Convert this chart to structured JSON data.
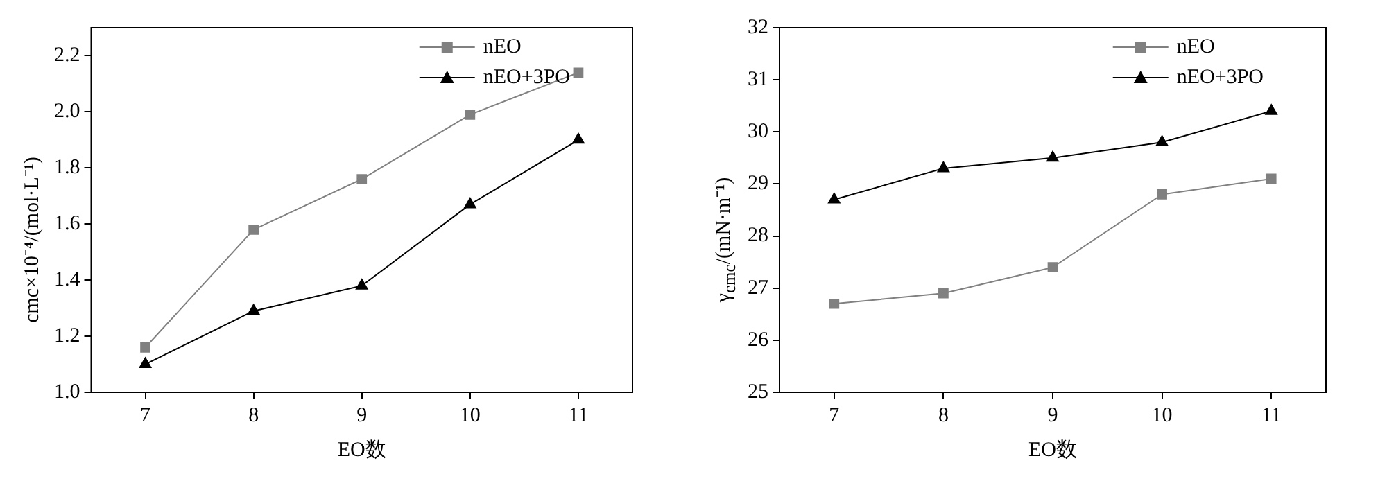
{
  "chart_data": [
    {
      "type": "line",
      "categories": [
        "7",
        "8",
        "9",
        "10",
        "11"
      ],
      "xlabel": "EO数",
      "ylabel": "cmc×10⁻⁴/(mol·L⁻¹)",
      "ylim": [
        1.0,
        2.3
      ],
      "yticks": [
        {
          "value": 1.0,
          "label": "1.0"
        },
        {
          "value": 1.2,
          "label": "1.2"
        },
        1.4,
        1.6,
        {
          "value": 1.8,
          "label": "1.8"
        },
        {
          "value": 2.0,
          "label": "2.0"
        },
        2.2
      ],
      "grid": false,
      "legend": "top right",
      "line_style": "solid",
      "series": [
        {
          "name": "nEO",
          "color": "#808080",
          "marker": "square",
          "values": [
            1.16,
            1.58,
            1.76,
            1.99,
            2.14
          ]
        },
        {
          "name": "nEO+3PO",
          "color": "#000000",
          "marker": "triangle",
          "values": [
            1.1,
            1.29,
            1.38,
            1.67,
            1.9
          ]
        }
      ]
    },
    {
      "type": "line",
      "categories": [
        "7",
        "8",
        "9",
        "10",
        "11"
      ],
      "xlabel": "EO数",
      "ylabel": "γ$_{cmc}$/(mN·m⁻¹)",
      "ylim": [
        25,
        32
      ],
      "yticks": [
        25,
        26,
        27,
        28,
        29,
        30,
        31,
        32
      ],
      "grid": false,
      "legend": "top right",
      "line_style": "solid",
      "series": [
        {
          "name": "nEO",
          "color": "#808080",
          "marker": "square",
          "values": [
            26.7,
            26.9,
            27.4,
            28.8,
            29.1
          ]
        },
        {
          "name": "nEO+3PO",
          "color": "#000000",
          "marker": "triangle",
          "values": [
            28.7,
            29.3,
            29.5,
            29.8,
            30.4
          ]
        }
      ]
    }
  ]
}
